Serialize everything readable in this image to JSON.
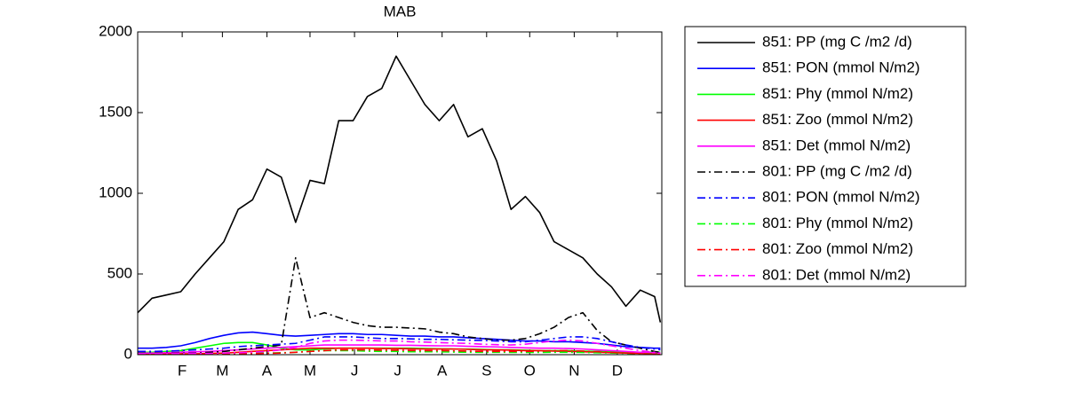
{
  "chart_data": {
    "type": "line",
    "title": "MAB",
    "x": [
      1,
      11,
      21,
      31,
      41,
      51,
      61,
      71,
      81,
      91,
      101,
      111,
      121,
      131,
      141,
      151,
      161,
      171,
      181,
      191,
      201,
      211,
      221,
      231,
      241,
      251,
      261,
      271,
      281,
      291,
      301,
      311,
      321,
      331,
      341,
      351,
      361,
      365
    ],
    "xlim": [
      1,
      366
    ],
    "xticks": [
      {
        "value": 32,
        "label": "F"
      },
      {
        "value": 60,
        "label": "M"
      },
      {
        "value": 91,
        "label": "A"
      },
      {
        "value": 121,
        "label": "M"
      },
      {
        "value": 152,
        "label": "J"
      },
      {
        "value": 182,
        "label": "J"
      },
      {
        "value": 213,
        "label": "A"
      },
      {
        "value": 244,
        "label": "S"
      },
      {
        "value": 274,
        "label": "O"
      },
      {
        "value": 305,
        "label": "N"
      },
      {
        "value": 335,
        "label": "D"
      }
    ],
    "ylim": [
      0,
      2000
    ],
    "yticks": [
      0,
      500,
      1000,
      1500,
      2000
    ],
    "grid": false,
    "legend": "outside-right",
    "series": [
      {
        "name": "851: PP (mg C /m2 /d)",
        "color": "#000000",
        "style": "solid",
        "values": [
          260,
          350,
          370,
          390,
          500,
          600,
          700,
          900,
          960,
          1150,
          1100,
          820,
          1080,
          1060,
          1450,
          1450,
          1600,
          1650,
          1850,
          1700,
          1550,
          1450,
          1550,
          1350,
          1400,
          1200,
          900,
          980,
          880,
          700,
          650,
          600,
          500,
          420,
          300,
          400,
          360,
          200
        ]
      },
      {
        "name": "851: PON (mmol N/m2)",
        "color": "#0000ff",
        "style": "solid",
        "values": [
          40,
          40,
          45,
          55,
          75,
          100,
          120,
          135,
          140,
          130,
          120,
          115,
          120,
          125,
          130,
          130,
          125,
          125,
          120,
          115,
          115,
          110,
          110,
          105,
          100,
          95,
          90,
          85,
          85,
          80,
          80,
          75,
          70,
          60,
          50,
          45,
          40,
          40
        ]
      },
      {
        "name": "851: Phy (mmol N/m2)",
        "color": "#00ff00",
        "style": "solid",
        "values": [
          15,
          15,
          20,
          25,
          40,
          55,
          70,
          75,
          75,
          60,
          40,
          30,
          30,
          35,
          40,
          40,
          40,
          40,
          40,
          40,
          38,
          36,
          35,
          35,
          33,
          30,
          30,
          28,
          25,
          25,
          25,
          22,
          20,
          18,
          15,
          15,
          15,
          15
        ]
      },
      {
        "name": "851: Zoo (mmol N/m2)",
        "color": "#ff0000",
        "style": "solid",
        "values": [
          5,
          5,
          5,
          5,
          5,
          8,
          10,
          15,
          20,
          25,
          30,
          35,
          40,
          40,
          40,
          40,
          40,
          38,
          38,
          36,
          35,
          35,
          35,
          33,
          30,
          30,
          28,
          25,
          25,
          22,
          20,
          18,
          15,
          12,
          10,
          8,
          6,
          5
        ]
      },
      {
        "name": "851: Det (mmol N/m2)",
        "color": "#ff00ff",
        "style": "solid",
        "values": [
          10,
          10,
          12,
          15,
          18,
          20,
          25,
          30,
          35,
          40,
          45,
          50,
          55,
          60,
          60,
          60,
          60,
          60,
          58,
          58,
          56,
          55,
          55,
          52,
          50,
          48,
          45,
          42,
          40,
          40,
          38,
          35,
          30,
          25,
          20,
          15,
          12,
          10
        ]
      },
      {
        "name": "801: PP (mg C /m2 /d)",
        "color": "#000000",
        "style": "dashdot",
        "values": [
          10,
          10,
          10,
          10,
          10,
          15,
          20,
          30,
          40,
          50,
          60,
          600,
          230,
          260,
          230,
          200,
          180,
          170,
          170,
          165,
          160,
          140,
          130,
          110,
          100,
          90,
          90,
          100,
          130,
          170,
          230,
          260,
          150,
          80,
          60,
          40,
          20,
          15
        ]
      },
      {
        "name": "801: PON (mmol N/m2)",
        "color": "#0000ff",
        "style": "dashdot",
        "values": [
          20,
          20,
          22,
          25,
          30,
          35,
          40,
          50,
          55,
          60,
          65,
          70,
          90,
          110,
          110,
          110,
          105,
          100,
          100,
          98,
          95,
          95,
          92,
          90,
          88,
          85,
          80,
          80,
          90,
          100,
          110,
          110,
          100,
          80,
          60,
          45,
          35,
          30
        ]
      },
      {
        "name": "801: Phy (mmol N/m2)",
        "color": "#00ff00",
        "style": "dashdot",
        "values": [
          5,
          5,
          5,
          5,
          5,
          5,
          5,
          8,
          10,
          10,
          12,
          15,
          20,
          25,
          25,
          25,
          22,
          20,
          20,
          18,
          18,
          18,
          16,
          15,
          15,
          15,
          14,
          14,
          14,
          15,
          15,
          14,
          12,
          10,
          8,
          6,
          5,
          5
        ]
      },
      {
        "name": "801: Zoo (mmol N/m2)",
        "color": "#ff0000",
        "style": "dashdot",
        "values": [
          3,
          3,
          3,
          3,
          3,
          3,
          4,
          5,
          6,
          8,
          10,
          15,
          20,
          25,
          30,
          30,
          30,
          28,
          28,
          26,
          25,
          25,
          24,
          22,
          20,
          20,
          20,
          20,
          22,
          25,
          25,
          22,
          18,
          14,
          10,
          6,
          4,
          3
        ]
      },
      {
        "name": "801: Det (mmol N/m2)",
        "color": "#ff00ff",
        "style": "dashdot",
        "values": [
          8,
          8,
          8,
          8,
          8,
          8,
          10,
          12,
          15,
          20,
          30,
          45,
          70,
          85,
          90,
          90,
          88,
          85,
          85,
          80,
          78,
          75,
          72,
          70,
          65,
          62,
          60,
          65,
          75,
          85,
          90,
          85,
          70,
          55,
          40,
          25,
          15,
          10
        ]
      }
    ]
  }
}
